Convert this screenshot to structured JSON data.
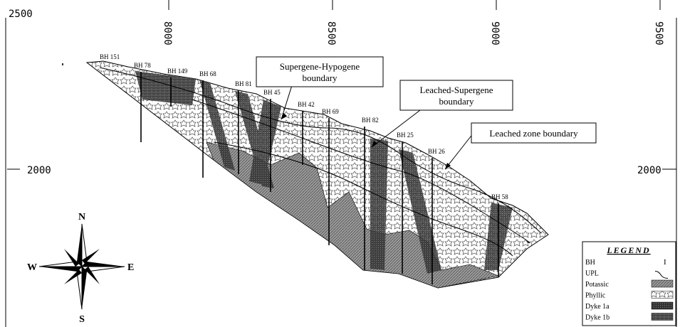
{
  "axes": {
    "left_labels": [
      "2500",
      "2000"
    ],
    "right_labels": [
      "2000"
    ],
    "top_labels": [
      "8000",
      "8500",
      "9000",
      "9500"
    ]
  },
  "boreholes": [
    "BH 151",
    "BH 78",
    "BH 149",
    "BH 68",
    "BH 81",
    "BH 45",
    "BH 42",
    "BH 69",
    "BH 82",
    "BH 25",
    "BH 26",
    "BH 58"
  ],
  "callouts": [
    {
      "lines": [
        "Supergene-Hypogene",
        "boundary"
      ]
    },
    {
      "lines": [
        "Leached-Supergene",
        "boundary"
      ]
    },
    {
      "lines": [
        "Leached zone boundary"
      ]
    }
  ],
  "compass": {
    "north": "N",
    "south": "S",
    "east": "E",
    "west": "W"
  },
  "legend": {
    "title": "LEGEND",
    "items": [
      "BH",
      "UPL",
      "Potassic",
      "Phyllic",
      "Dyke 1a",
      "Dyke 1b"
    ]
  }
}
